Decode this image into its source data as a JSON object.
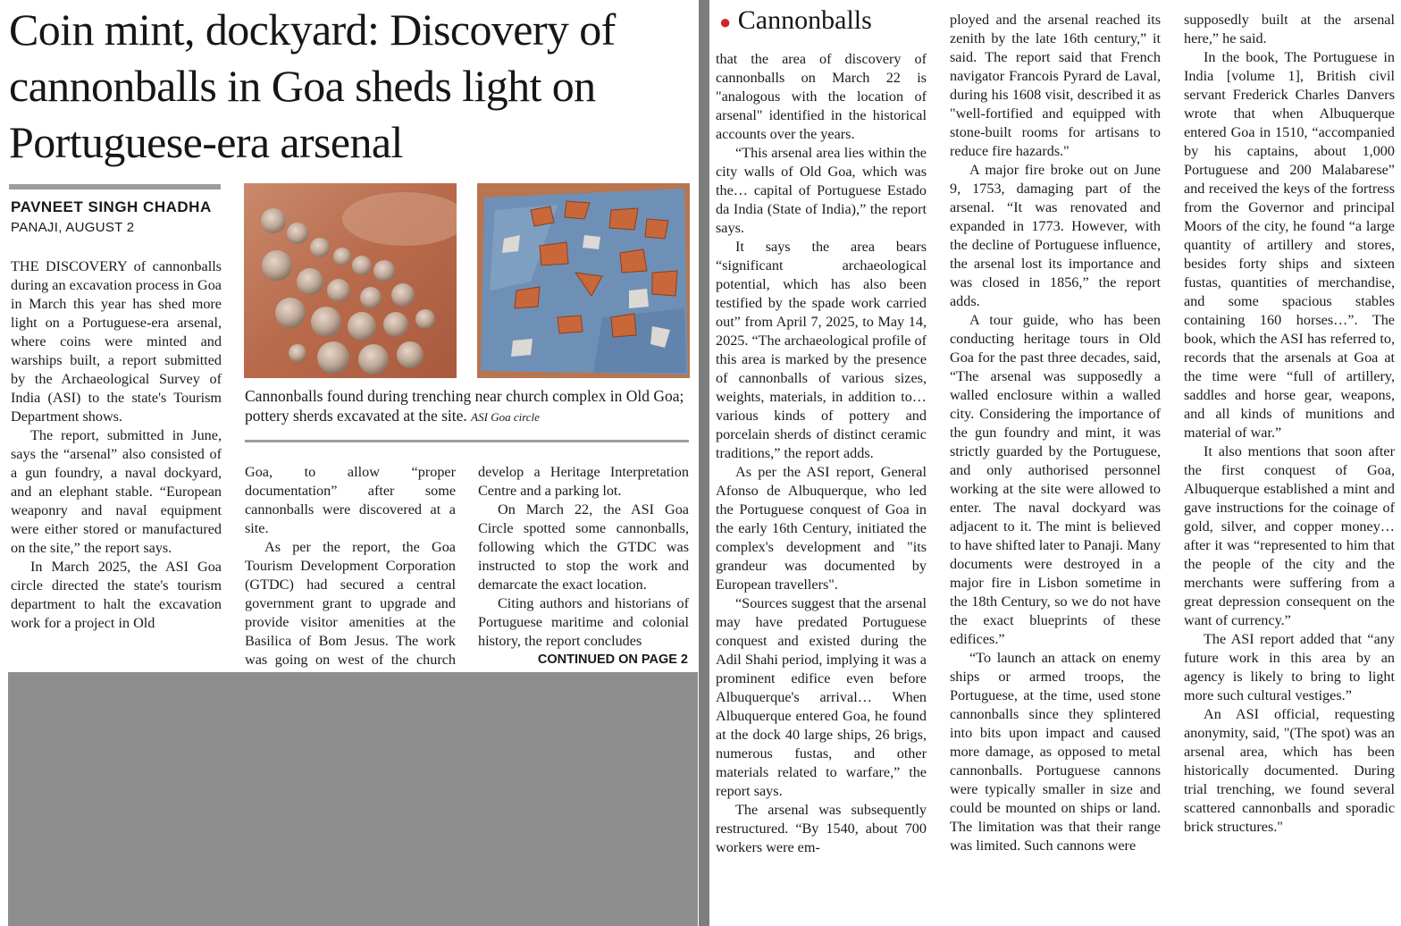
{
  "article": {
    "headline": "Coin mint, dockyard: Discovery of cannonballs in Goa sheds light on Portuguese-era arsenal",
    "byline": "PAVNEET SINGH CHADHA",
    "dateline": "PANAJI, AUGUST 2",
    "caption": "Cannonballs found during trenching near church complex in Old Goa; pottery sherds excavated at the site.",
    "photo_credit": "ASI Goa circle",
    "continued": "CONTINUED ON PAGE 2",
    "kicker": "Cannonballs",
    "photos": [
      {
        "icon": "cannonballs-photo",
        "colors": [
          "#b96f4f",
          "#d8a68a",
          "#9c8d80"
        ]
      },
      {
        "icon": "pottery-sherds-photo",
        "colors": [
          "#6f8fb4",
          "#c1602d",
          "#d9d6d3"
        ]
      }
    ]
  },
  "columns": {
    "c1": [
      {
        "first": true,
        "text": "THE DISCOVERY of cannonballs during an excavation process in Goa in March this year has shed more light on a Portuguese-era arsenal, where coins were minted and warships built, a report submitted by the Archaeological Survey of India (ASI) to the state's Tourism Department shows."
      },
      {
        "text": "The report, submitted in June, says the “arsenal” also consisted of a gun foundry, a naval dockyard, and an elephant stable. “European weaponry and naval equipment were either stored or manufactured on the site,” the report says."
      },
      {
        "text": "In March 2025, the ASI Goa circle directed the state's tourism department to halt the excavation work for a project in Old"
      }
    ],
    "c2": [
      {
        "first": true,
        "text": "Goa, to allow “proper documentation” after some cannonballs were discovered at a site."
      },
      {
        "text": "As per the report, the Goa Tourism Development Corporation (GTDC) had secured a central government grant to upgrade and provide visitor amenities at the Basilica of Bom Jesus. The work was going on west of the church complex to"
      }
    ],
    "c3": [
      {
        "first": true,
        "text": "develop a Heritage Interpretation Centre and a parking lot."
      },
      {
        "text": "On March 22, the ASI Goa Circle spotted some cannonballs, following which the GTDC was instructed to stop the work and demarcate the exact location."
      },
      {
        "text": "Citing authors and historians of Portuguese maritime and colonial history, the report concludes"
      }
    ],
    "c4": [
      {
        "first": true,
        "text": "that the area of discovery of cannonballs on March 22 is \"analogous with the location of arsenal\" identified in the historical accounts over the years."
      },
      {
        "text": "“This arsenal area lies within the city walls of Old Goa, which was the… capital of Portuguese Estado da India (State of India),” the report says."
      },
      {
        "text": "It says the area bears “significant archaeological potential, which has also been testified by the spade work carried out” from April 7, 2025, to May 14, 2025. “The archaeological profile of this area is marked by the presence of cannonballs of various sizes, weights, materials, in addition to… various kinds of pottery and porcelain sherds of distinct ceramic traditions,” the report adds."
      },
      {
        "text": "As per the ASI report, General Afonso de Albuquerque, who led the Portuguese conquest of Goa in the early 16th Century, initiated the complex's development and \"its grandeur was documented by European travellers\"."
      },
      {
        "text": "“Sources suggest that the arsenal may have predated Portuguese conquest and existed during the Adil Shahi period, implying it was a prominent edifice even before Albuquerque's arrival… When Albuquerque entered Goa, he found at the dock 40 large ships, 26 brigs, numerous fustas, and other materials related to warfare,” the report says."
      },
      {
        "text": "The arsenal was subsequently restructured. “By 1540, about 700 workers were em-"
      }
    ],
    "c5": [
      {
        "first": true,
        "text": "ployed and the arsenal reached its zenith by the late 16th century,” it said. The report said that French navigator Francois Pyrard de Laval, during his 1608 visit, described it as \"well-fortified and equipped with stone-built rooms for artisans to reduce fire hazards.\""
      },
      {
        "text": "A major fire broke out on June 9, 1753, damaging part of the arsenal. “It was renovated and expanded in 1773. However, with the decline of Portuguese influence, the arsenal lost its importance and was closed in 1856,” the report adds."
      },
      {
        "text": "A tour guide, who has been conducting heritage tours in Old Goa for the past three decades, said, “The arsenal was supposedly a walled enclosure within a walled city. Considering the importance of the gun foundry and mint, it was strictly guarded by the Portuguese, and only authorised personnel working at the site were allowed to enter. The naval dockyard was adjacent to it. The mint is believed to have shifted later to Panaji. Many documents were destroyed in a major fire in Lisbon sometime in the 18th Century, so we do not have the exact blueprints of these edifices.”"
      },
      {
        "text": "“To launch an attack on enemy ships or armed troops, the Portuguese, at the time, used stone cannonballs since they splintered into bits upon impact and caused more damage, as opposed to metal cannonballs. Portuguese cannons were typically smaller in size and could be mounted on ships or land. The limitation was that their range was limited. Such cannons were"
      }
    ],
    "c6": [
      {
        "first": true,
        "text": "supposedly built at the arsenal here,” he said."
      },
      {
        "text": "In the book, The Portuguese in India [volume 1], British civil servant Frederick Charles Danvers wrote that when Albuquerque entered Goa in 1510, “accompanied by his captains, about 1,000 Portuguese and 200 Malabarese” and received the keys of the fortress from the Governor and principal Moors of the city, he found “a large quantity of artillery and stores, besides forty ships and sixteen fustas, quantities of merchandise, and some spacious stables containing 160 horses…”. The book, which the ASI has referred to, records that the arsenals at Goa at the time were “full of artillery, saddles and horse gear, weapons, and all kinds of munitions and material of war.”"
      },
      {
        "text": "It also mentions that soon after the first conquest of Goa, Albuquerque established a mint and gave instructions for the coinage of gold, silver, and copper money… after it was “represented to him that the people of the city and the merchants were suffering from a great depression consequent on the want of currency.”"
      },
      {
        "text": "The ASI report added that “any future work in this area by an agency is likely to bring to light more such cultural vestiges.”"
      },
      {
        "text": "An ASI official, requesting anonymity, said, \"(The spot) was an arsenal area, which has been historically documented. During trial trenching, we found several scattered cannonballs and sporadic brick structures.\""
      }
    ]
  }
}
